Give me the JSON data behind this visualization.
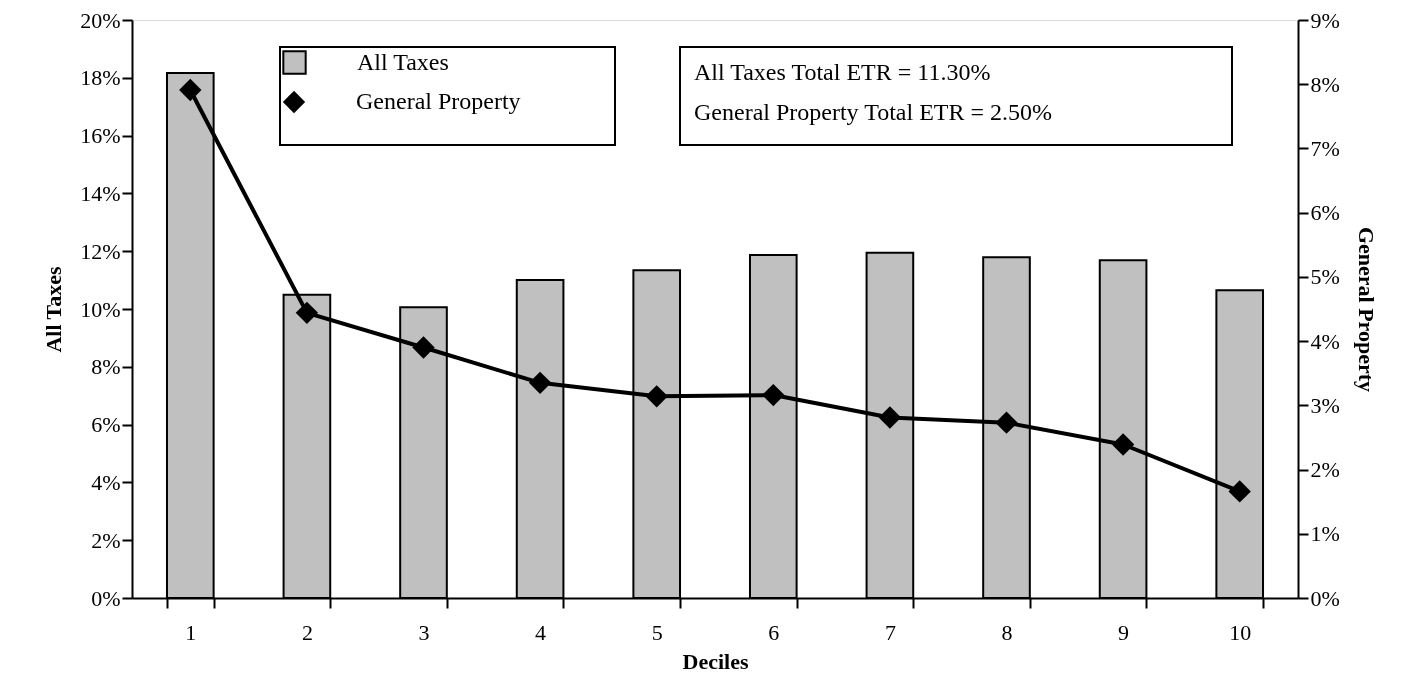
{
  "chart_data": {
    "type": "bar",
    "xlabel": "Deciles",
    "ylabel": "All Taxes",
    "y2label": "General Property",
    "categories": [
      "1",
      "2",
      "3",
      "4",
      "5",
      "6",
      "7",
      "8",
      "9",
      "10"
    ],
    "series": [
      {
        "name": "All Taxes",
        "color": "#c0c0c0",
        "values": [
          18.17,
          10.49,
          10.06,
          11.0,
          11.34,
          11.87,
          11.95,
          11.79,
          11.69,
          10.65
        ]
      },
      {
        "name": "General Property",
        "type": "line",
        "axis": "y2",
        "color": "#000000",
        "marker": "diamond",
        "values": [
          7.91,
          4.44,
          3.9,
          3.35,
          3.14,
          3.16,
          2.81,
          2.73,
          2.39,
          1.66
        ]
      }
    ],
    "ylim": [
      0,
      20
    ],
    "yticks": [
      {
        "value": 0,
        "label": "0%"
      },
      {
        "value": 2,
        "label": "2%"
      },
      {
        "value": 4,
        "label": "4%"
      },
      {
        "value": 6,
        "label": "6%"
      },
      {
        "value": 8,
        "label": "8%"
      },
      {
        "value": 10,
        "label": "10%"
      },
      {
        "value": 12,
        "label": "12%"
      },
      {
        "value": 14,
        "label": "14%"
      },
      {
        "value": 16,
        "label": "16%"
      },
      {
        "value": 18,
        "label": "18%"
      },
      {
        "value": 20,
        "label": "20%"
      }
    ],
    "y2lim": [
      0,
      9
    ],
    "y2ticks": [
      {
        "value": 0,
        "label": "0%"
      },
      {
        "value": 1,
        "label": "1%"
      },
      {
        "value": 2,
        "label": "2%"
      },
      {
        "value": 3,
        "label": "3%"
      },
      {
        "value": 4,
        "label": "4%"
      },
      {
        "value": 5,
        "label": "5%"
      },
      {
        "value": 6,
        "label": "6%"
      },
      {
        "value": 7,
        "label": "7%"
      },
      {
        "value": 8,
        "label": "8%"
      },
      {
        "value": 9,
        "label": "9%"
      }
    ],
    "annotations": [
      "All Taxes Total ETR = 11.30%",
      "General Property Total ETR = 2.50%"
    ],
    "legend": "top",
    "grid": false
  }
}
